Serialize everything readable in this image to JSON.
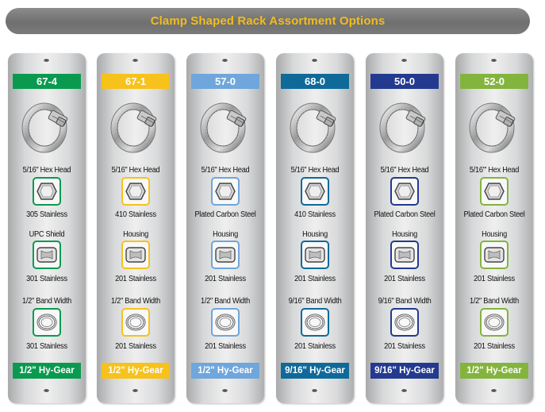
{
  "header": {
    "title": "Clamp Shaped Rack Assortment Options"
  },
  "cards": [
    {
      "code": "67-4",
      "color": "#0a9a4f",
      "screw": "5/16\" Hex Head",
      "screw_material": "305 Stainless",
      "housing_label": "UPC Shield",
      "housing_material": "301 Stainless",
      "band_label": "1/2\" Band Width",
      "band_material": "301 Stainless",
      "gear": "1/2\" Hy-Gear"
    },
    {
      "code": "67-1",
      "color": "#f6c21b",
      "screw": "5/16\" Hex Head",
      "screw_material": "410 Stainless",
      "housing_label": "Housing",
      "housing_material": "201 Stainless",
      "band_label": "1/2\" Band Width",
      "band_material": "201 Stainless",
      "gear": "1/2\" Hy-Gear"
    },
    {
      "code": "57-0",
      "color": "#6fa6dc",
      "screw": "5/16\" Hex Head",
      "screw_material": "Plated Carbon Steel",
      "housing_label": "Housing",
      "housing_material": "201 Stainless",
      "band_label": "1/2\" Band Width",
      "band_material": "201 Stainless",
      "gear": "1/2\" Hy-Gear"
    },
    {
      "code": "68-0",
      "color": "#0f6a9a",
      "screw": "5/16\" Hex Head",
      "screw_material": "410 Stainless",
      "housing_label": "Housing",
      "housing_material": "201 Stainless",
      "band_label": "9/16\" Band Width",
      "band_material": "201 Stainless",
      "gear": "9/16\" Hy-Gear"
    },
    {
      "code": "50-0",
      "color": "#233a8f",
      "screw": "5/16\" Hex Head",
      "screw_material": "Plated Carbon Steel",
      "housing_label": "Housing",
      "housing_material": "201 Stainless",
      "band_label": "9/16\" Band Width",
      "band_material": "201 Stainless",
      "gear": "9/16\" Hy-Gear"
    },
    {
      "code": "52-0",
      "color": "#83b43e",
      "screw": "5/16\"' Hex Head",
      "screw_material": "Plated Carbon Steel",
      "housing_label": "Housing",
      "housing_material": "201 Stainless",
      "band_label": "1/2\" Band Width",
      "band_material": "201 Stainless",
      "gear": "1/2\" Hy-Gear"
    }
  ],
  "icons": {
    "clamp": "hose-clamp-photo",
    "screw": "hex-head-icon",
    "housing": "housing-icon",
    "band": "band-icon"
  }
}
